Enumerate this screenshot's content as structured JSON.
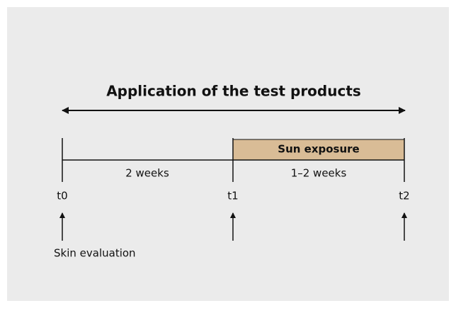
{
  "title": "Application of the test products",
  "phase": "Sun exposure",
  "durations": [
    "2 weeks",
    "1–2 weeks"
  ],
  "timepoints": [
    "t0",
    "t1",
    "t2"
  ],
  "annotation": "Skin evaluation"
}
